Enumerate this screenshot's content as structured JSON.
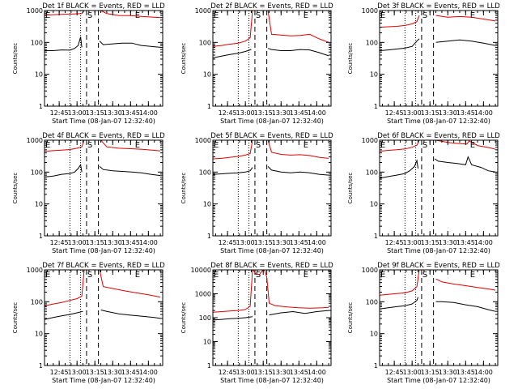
{
  "figure": {
    "xlabel": "Start Time (08-Jan-07 12:32:40)",
    "ylabel": "Counts/sec",
    "time_ticks": [
      "12:45",
      "13:00",
      "13:15",
      "13:30",
      "13:45",
      "14:00"
    ],
    "marker_labels": {
      "start": "S",
      "end": "E"
    },
    "colors": {
      "events": "#000000",
      "lld": "#e00000",
      "axes": "#000000"
    }
  },
  "chart_data": [
    {
      "type": "line",
      "title": "Det 1f BLACK = Events, RED = LLD",
      "yscale": "log",
      "ylim": [
        1,
        1000
      ],
      "ytick_labels": [
        "1",
        "10",
        "100",
        "1000"
      ],
      "xlim": [
        "12:32:40",
        "14:12:00"
      ],
      "markers": {
        "dotted": [
          "12:54",
          "13:03"
        ],
        "dashed": [
          "13:08",
          "13:18"
        ]
      },
      "series": [
        {
          "name": "Events",
          "color": "#000000",
          "x": [
            "12:33",
            "12:40",
            "12:47",
            "12:54",
            "12:58",
            "13:01",
            "13:03",
            "13:04",
            "13:08",
            "13:18",
            "13:19",
            "13:22",
            "13:30",
            "13:38",
            "13:46",
            "13:54",
            "14:02",
            "14:10"
          ],
          "y": [
            55,
            55,
            58,
            57,
            65,
            80,
            150,
            70,
            null,
            null,
            110,
            85,
            90,
            95,
            95,
            80,
            75,
            70
          ]
        },
        {
          "name": "LLD",
          "color": "#e00000",
          "x": [
            "12:33",
            "12:40",
            "12:47",
            "12:54",
            "13:00",
            "13:04",
            "13:06",
            "13:08",
            "13:18",
            "13:20",
            "13:25",
            "13:35",
            "13:45",
            "13:55",
            "14:05",
            "14:10"
          ],
          "y": [
            720,
            740,
            760,
            770,
            790,
            800,
            1000,
            null,
            null,
            1000,
            800,
            700,
            690,
            650,
            620,
            600
          ]
        }
      ]
    },
    {
      "type": "line",
      "title": "Det 2f BLACK = Events, RED = LLD",
      "yscale": "log",
      "ylim": [
        1,
        1000
      ],
      "ytick_labels": [
        "1",
        "10",
        "100",
        "1000"
      ],
      "xlim": [
        "12:32:40",
        "14:12:00"
      ],
      "markers": {
        "dotted": [
          "12:54",
          "13:03"
        ],
        "dashed": [
          "13:08",
          "13:18"
        ]
      },
      "series": [
        {
          "name": "Events",
          "color": "#000000",
          "x": [
            "12:33",
            "12:40",
            "12:47",
            "12:54",
            "13:00",
            "13:05",
            "13:08",
            "13:18",
            "13:19",
            "13:22",
            "13:30",
            "13:38",
            "13:46",
            "13:54",
            "14:02",
            "14:10"
          ],
          "y": [
            33,
            37,
            42,
            46,
            52,
            60,
            null,
            null,
            65,
            60,
            55,
            55,
            60,
            58,
            48,
            38
          ]
        },
        {
          "name": "LLD",
          "color": "#e00000",
          "x": [
            "12:33",
            "12:40",
            "12:47",
            "12:54",
            "13:00",
            "13:04",
            "13:06",
            "13:08",
            "13:18",
            "13:19",
            "13:22",
            "13:30",
            "13:38",
            "13:46",
            "13:54",
            "14:02",
            "14:10"
          ],
          "y": [
            75,
            80,
            88,
            95,
            110,
            140,
            1000,
            null,
            null,
            1000,
            180,
            170,
            160,
            165,
            180,
            130,
            100
          ]
        }
      ]
    },
    {
      "type": "line",
      "title": "Det 3f BLACK = Events, RED = LLD",
      "yscale": "log",
      "ylim": [
        1,
        1000
      ],
      "ytick_labels": [
        "1",
        "10",
        "100",
        "1000"
      ],
      "xlim": [
        "12:32:40",
        "14:12:00"
      ],
      "markers": {
        "dotted": [
          "12:54",
          "13:03"
        ],
        "dashed": [
          "13:08",
          "13:18"
        ]
      },
      "series": [
        {
          "name": "Events",
          "color": "#000000",
          "x": [
            "12:33",
            "12:40",
            "12:47",
            "12:54",
            "13:00",
            "13:04",
            "13:06",
            "13:08",
            "13:18",
            "13:20",
            "13:30",
            "13:40",
            "13:50",
            "14:00",
            "14:10"
          ],
          "y": [
            55,
            58,
            62,
            66,
            75,
            110,
            130,
            null,
            null,
            100,
            110,
            120,
            110,
            95,
            80
          ]
        },
        {
          "name": "LLD",
          "color": "#e00000",
          "x": [
            "12:33",
            "12:40",
            "12:47",
            "12:54",
            "13:00",
            "13:04",
            "13:06",
            "13:08",
            "13:18",
            "13:20",
            "13:30",
            "13:40",
            "13:50",
            "14:00",
            "14:10"
          ],
          "y": [
            300,
            310,
            320,
            340,
            380,
            450,
            700,
            null,
            null,
            700,
            620,
            650,
            620,
            540,
            470
          ]
        }
      ]
    },
    {
      "type": "line",
      "title": "Det 4f BLACK = Events, RED = LLD",
      "yscale": "log",
      "ylim": [
        1,
        1000
      ],
      "ytick_labels": [
        "1",
        "10",
        "100",
        "1000"
      ],
      "xlim": [
        "12:32:40",
        "14:12:00"
      ],
      "markers": {
        "dotted": [
          "12:54",
          "13:03"
        ],
        "dashed": [
          "13:08",
          "13:18"
        ]
      },
      "series": [
        {
          "name": "Events",
          "color": "#000000",
          "x": [
            "12:33",
            "12:40",
            "12:47",
            "12:54",
            "12:58",
            "13:01",
            "13:03",
            "13:04",
            "13:08",
            "13:18",
            "13:19",
            "13:22",
            "13:30",
            "13:38",
            "13:46",
            "13:54",
            "14:02",
            "14:10"
          ],
          "y": [
            70,
            75,
            85,
            90,
            100,
            130,
            170,
            100,
            null,
            null,
            150,
            120,
            110,
            105,
            100,
            95,
            85,
            78
          ]
        },
        {
          "name": "LLD",
          "color": "#e00000",
          "x": [
            "12:33",
            "12:40",
            "12:47",
            "12:54",
            "13:00",
            "13:04",
            "13:06",
            "13:08",
            "13:18",
            "13:20",
            "13:25",
            "13:35",
            "13:45",
            "13:55",
            "14:05",
            "14:10"
          ],
          "y": [
            450,
            470,
            490,
            510,
            560,
            620,
            1000,
            null,
            null,
            1000,
            620,
            560,
            540,
            520,
            480,
            460
          ]
        }
      ]
    },
    {
      "type": "line",
      "title": "Det 5f BLACK = Events, RED = LLD",
      "yscale": "log",
      "ylim": [
        1,
        1000
      ],
      "ytick_labels": [
        "1",
        "10",
        "100",
        "1000"
      ],
      "xlim": [
        "12:32:40",
        "14:12:00"
      ],
      "markers": {
        "dotted": [
          "12:54",
          "13:03"
        ],
        "dashed": [
          "13:08",
          "13:18"
        ]
      },
      "series": [
        {
          "name": "Events",
          "color": "#000000",
          "x": [
            "12:33",
            "12:40",
            "12:47",
            "12:54",
            "13:00",
            "13:04",
            "13:06",
            "13:08",
            "13:18",
            "13:19",
            "13:22",
            "13:30",
            "13:38",
            "13:46",
            "13:54",
            "14:02",
            "14:10"
          ],
          "y": [
            85,
            88,
            92,
            95,
            100,
            110,
            140,
            null,
            null,
            150,
            115,
            100,
            95,
            100,
            95,
            85,
            80
          ]
        },
        {
          "name": "LLD",
          "color": "#e00000",
          "x": [
            "12:33",
            "12:40",
            "12:47",
            "12:54",
            "13:00",
            "13:04",
            "13:06",
            "13:08",
            "13:18",
            "13:19",
            "13:22",
            "13:30",
            "13:38",
            "13:46",
            "13:54",
            "14:02",
            "14:10"
          ],
          "y": [
            260,
            270,
            290,
            310,
            340,
            380,
            1000,
            null,
            null,
            1000,
            420,
            360,
            340,
            350,
            330,
            290,
            270
          ]
        }
      ]
    },
    {
      "type": "line",
      "title": "Det 6f BLACK = Events, RED = LLD",
      "yscale": "log",
      "ylim": [
        1,
        1000
      ],
      "ytick_labels": [
        "1",
        "10",
        "100",
        "1000"
      ],
      "xlim": [
        "12:32:40",
        "14:12:00"
      ],
      "markers": {
        "dotted": [
          "12:54",
          "13:03"
        ],
        "dashed": [
          "13:08",
          "13:18"
        ]
      },
      "series": [
        {
          "name": "Events",
          "color": "#000000",
          "x": [
            "12:33",
            "12:40",
            "12:47",
            "12:54",
            "12:58",
            "13:02",
            "13:04",
            "13:05",
            "13:08",
            "13:18",
            "13:19",
            "13:22",
            "13:30",
            "13:38",
            "13:45",
            "13:47",
            "13:50",
            "13:58",
            "14:04",
            "14:10"
          ],
          "y": [
            65,
            72,
            80,
            90,
            110,
            150,
            230,
            130,
            null,
            null,
            260,
            220,
            200,
            185,
            170,
            300,
            170,
            140,
            110,
            100
          ]
        },
        {
          "name": "LLD",
          "color": "#e00000",
          "x": [
            "12:33",
            "12:40",
            "12:47",
            "12:54",
            "13:00",
            "13:04",
            "13:06",
            "13:08",
            "13:18",
            "13:20",
            "13:30",
            "13:40",
            "13:46",
            "13:48",
            "13:55",
            "14:05",
            "14:10"
          ],
          "y": [
            450,
            480,
            500,
            530,
            600,
            700,
            1000,
            null,
            null,
            1000,
            850,
            780,
            760,
            950,
            680,
            580,
            520
          ]
        }
      ]
    },
    {
      "type": "line",
      "title": "Det 7f BLACK = Events, RED = LLD",
      "yscale": "log",
      "ylim": [
        1,
        1000
      ],
      "ytick_labels": [
        "1",
        "10",
        "100",
        "1000"
      ],
      "xlim": [
        "12:32:40",
        "14:12:00"
      ],
      "markers": {
        "dotted": [
          "12:54",
          "13:03"
        ],
        "dashed": [
          "13:08",
          "13:18"
        ]
      },
      "series": [
        {
          "name": "Events",
          "color": "#000000",
          "x": [
            "12:33",
            "12:40",
            "12:47",
            "12:54",
            "13:00",
            "13:05",
            "13:08",
            "13:18",
            "13:20",
            "13:25",
            "13:35",
            "13:45",
            "13:55",
            "14:05",
            "14:10"
          ],
          "y": [
            28,
            32,
            36,
            40,
            45,
            50,
            null,
            null,
            55,
            50,
            42,
            38,
            35,
            32,
            30
          ]
        },
        {
          "name": "LLD",
          "color": "#e00000",
          "x": [
            "12:33",
            "12:40",
            "12:47",
            "12:54",
            "13:00",
            "13:04",
            "13:06",
            "13:08",
            "13:18",
            "13:19",
            "13:22",
            "13:30",
            "13:40",
            "13:50",
            "14:00",
            "14:10"
          ],
          "y": [
            75,
            85,
            95,
            110,
            125,
            150,
            1000,
            null,
            null,
            1000,
            300,
            260,
            220,
            190,
            165,
            140
          ]
        }
      ]
    },
    {
      "type": "line",
      "title": "Det 8f BLACK = Events, RED = LLD",
      "yscale": "log",
      "ylim": [
        1,
        10000
      ],
      "ytick_labels": [
        "1",
        "10",
        "100",
        "1000",
        "10000"
      ],
      "xlim": [
        "12:32:40",
        "14:12:00"
      ],
      "markers": {
        "dotted": [
          "12:54",
          "13:03"
        ],
        "dashed": [
          "13:08",
          "13:18"
        ]
      },
      "series": [
        {
          "name": "Events",
          "color": "#000000",
          "x": [
            "12:33",
            "12:40",
            "12:47",
            "12:54",
            "13:00",
            "13:06",
            "13:08",
            "13:18",
            "13:20",
            "13:30",
            "13:40",
            "13:50",
            "14:00",
            "14:10"
          ],
          "y": [
            80,
            85,
            90,
            95,
            100,
            110,
            null,
            null,
            130,
            160,
            180,
            150,
            180,
            200
          ]
        },
        {
          "name": "LLD",
          "color": "#e00000",
          "x": [
            "12:33",
            "12:40",
            "12:47",
            "12:54",
            "13:00",
            "13:04",
            "13:06",
            "13:07",
            "13:09",
            "13:12",
            "13:14",
            "13:16",
            "13:18",
            "13:20",
            "13:25",
            "13:35",
            "13:45",
            "13:55",
            "14:05",
            "14:10"
          ],
          "y": [
            170,
            180,
            190,
            200,
            220,
            300,
            10000,
            9000,
            6500,
            6500,
            9000,
            10000,
            5000,
            400,
            320,
            280,
            260,
            250,
            260,
            270
          ]
        }
      ]
    },
    {
      "type": "line",
      "title": "Det 9f BLACK = Events, RED = LLD",
      "yscale": "log",
      "ylim": [
        1,
        1000
      ],
      "ytick_labels": [
        "1",
        "10",
        "100",
        "1000"
      ],
      "xlim": [
        "12:32:40",
        "14:12:00"
      ],
      "markers": {
        "dotted": [
          "12:54",
          "13:03"
        ],
        "dashed": [
          "13:08",
          "13:18"
        ]
      },
      "series": [
        {
          "name": "Events",
          "color": "#000000",
          "x": [
            "12:33",
            "12:40",
            "12:47",
            "12:54",
            "13:00",
            "13:04",
            "13:05",
            "13:08",
            "13:18",
            "13:20",
            "13:25",
            "13:35",
            "13:45",
            "13:55",
            "14:05",
            "14:10"
          ],
          "y": [
            60,
            65,
            70,
            75,
            85,
            110,
            140,
            null,
            null,
            100,
            100,
            95,
            80,
            70,
            55,
            50
          ]
        },
        {
          "name": "LLD",
          "color": "#e00000",
          "x": [
            "12:33",
            "12:40",
            "12:47",
            "12:54",
            "13:00",
            "13:04",
            "13:06",
            "13:08",
            "13:18",
            "13:20",
            "13:25",
            "13:35",
            "13:45",
            "13:55",
            "14:05",
            "14:10"
          ],
          "y": [
            160,
            170,
            180,
            190,
            220,
            300,
            1000,
            null,
            null,
            520,
            420,
            360,
            320,
            280,
            250,
            230
          ]
        }
      ]
    }
  ]
}
